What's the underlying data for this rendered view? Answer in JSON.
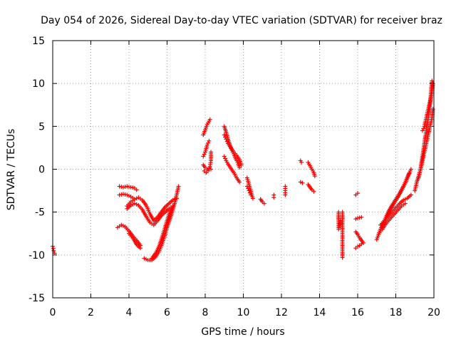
{
  "chart_data": {
    "type": "scatter",
    "title": "Day 054 of 2026, Sidereal Day-to-day VTEC variation (SDTVAR) for receiver braz",
    "xlabel": "GPS time / hours",
    "ylabel": "SDTVAR / TECUs",
    "xlim": [
      0,
      20
    ],
    "ylim": [
      -15,
      15
    ],
    "xticks": [
      0,
      2,
      4,
      6,
      8,
      10,
      12,
      14,
      16,
      18,
      20
    ],
    "yticks": [
      -15,
      -10,
      -5,
      0,
      5,
      10,
      15
    ],
    "grid": true,
    "marker": "+",
    "color": "#ff0000",
    "series": [
      {
        "name": "SDTVAR",
        "segments": [
          [
            [
              0.0,
              -9.0
            ],
            [
              0.05,
              -9.5
            ],
            [
              0.1,
              -9.8
            ]
          ],
          [
            [
              3.5,
              -2.0
            ],
            [
              3.7,
              -2.1
            ],
            [
              3.9,
              -2.0
            ],
            [
              4.1,
              -2.1
            ],
            [
              4.3,
              -2.2
            ],
            [
              4.4,
              -2.4
            ]
          ],
          [
            [
              3.5,
              -3.0
            ],
            [
              3.7,
              -2.9
            ],
            [
              3.9,
              -3.0
            ],
            [
              4.1,
              -3.2
            ],
            [
              4.3,
              -3.5
            ]
          ],
          [
            [
              3.9,
              -4.3
            ],
            [
              4.1,
              -3.8
            ],
            [
              4.3,
              -3.5
            ],
            [
              4.5,
              -3.3
            ],
            [
              4.7,
              -3.6
            ],
            [
              4.9,
              -4.2
            ],
            [
              5.1,
              -5.2
            ],
            [
              5.3,
              -6.0
            ],
            [
              5.5,
              -5.6
            ],
            [
              5.7,
              -5.0
            ],
            [
              5.9,
              -4.4
            ],
            [
              6.1,
              -4.0
            ],
            [
              6.3,
              -3.6
            ],
            [
              6.5,
              -3.4
            ]
          ],
          [
            [
              3.9,
              -4.6
            ],
            [
              4.1,
              -4.2
            ],
            [
              4.3,
              -4.0
            ],
            [
              4.5,
              -4.2
            ],
            [
              4.7,
              -4.7
            ],
            [
              4.9,
              -5.5
            ],
            [
              5.1,
              -6.2
            ],
            [
              5.3,
              -6.5
            ],
            [
              5.5,
              -6.0
            ],
            [
              5.7,
              -5.4
            ],
            [
              5.9,
              -5.0
            ],
            [
              6.1,
              -4.6
            ],
            [
              6.3,
              -4.3
            ]
          ],
          [
            [
              3.4,
              -6.8
            ],
            [
              3.6,
              -6.5
            ],
            [
              3.8,
              -6.7
            ],
            [
              4.0,
              -7.2
            ],
            [
              4.2,
              -7.8
            ],
            [
              4.4,
              -8.3
            ],
            [
              4.6,
              -8.9
            ]
          ],
          [
            [
              4.0,
              -7.5
            ],
            [
              4.2,
              -8.0
            ],
            [
              4.4,
              -8.8
            ],
            [
              4.6,
              -9.2
            ]
          ],
          [
            [
              4.8,
              -10.4
            ],
            [
              5.0,
              -10.6
            ],
            [
              5.2,
              -10.6
            ],
            [
              5.4,
              -10.2
            ],
            [
              5.6,
              -9.5
            ],
            [
              5.8,
              -8.3
            ],
            [
              6.0,
              -6.8
            ],
            [
              6.2,
              -5.4
            ],
            [
              6.4,
              -4.0
            ],
            [
              6.5,
              -3.0
            ],
            [
              6.6,
              -2.0
            ]
          ],
          [
            [
              5.2,
              -10.4
            ],
            [
              5.4,
              -9.8
            ],
            [
              5.6,
              -8.9
            ],
            [
              5.8,
              -7.5
            ],
            [
              6.0,
              -6.0
            ],
            [
              6.2,
              -4.6
            ]
          ],
          [
            [
              7.9,
              4.0
            ],
            [
              8.0,
              4.6
            ],
            [
              8.1,
              5.2
            ],
            [
              8.2,
              5.6
            ],
            [
              8.25,
              5.8
            ]
          ],
          [
            [
              7.9,
              1.5
            ],
            [
              8.0,
              2.0
            ],
            [
              8.1,
              2.8
            ],
            [
              8.2,
              3.3
            ]
          ],
          [
            [
              7.9,
              0.5
            ],
            [
              8.0,
              0.2
            ],
            [
              8.1,
              0.0
            ],
            [
              8.2,
              0.1
            ],
            [
              8.3,
              0.0
            ]
          ],
          [
            [
              7.95,
              -0.2
            ],
            [
              8.05,
              -0.4
            ],
            [
              8.15,
              -0.2
            ],
            [
              8.25,
              0.3
            ],
            [
              8.3,
              1.0
            ],
            [
              8.3,
              2.0
            ]
          ],
          [
            [
              9.0,
              5.0
            ],
            [
              9.1,
              4.3
            ],
            [
              9.2,
              3.5
            ],
            [
              9.3,
              2.8
            ],
            [
              9.4,
              2.2
            ],
            [
              9.5,
              1.8
            ],
            [
              9.6,
              1.2
            ],
            [
              9.7,
              0.8
            ],
            [
              9.8,
              0.2
            ]
          ],
          [
            [
              9.0,
              4.0
            ],
            [
              9.1,
              3.5
            ],
            [
              9.2,
              3.0
            ],
            [
              9.35,
              2.5
            ],
            [
              9.5,
              2.0
            ],
            [
              9.65,
              1.6
            ],
            [
              9.8,
              1.1
            ],
            [
              9.9,
              0.5
            ]
          ],
          [
            [
              9.0,
              1.5
            ],
            [
              9.1,
              1.0
            ],
            [
              9.2,
              0.6
            ],
            [
              9.35,
              0.1
            ],
            [
              9.5,
              -0.4
            ],
            [
              9.65,
              -1.0
            ],
            [
              9.8,
              -1.5
            ]
          ],
          [
            [
              10.2,
              -1.0
            ],
            [
              10.3,
              -1.8
            ],
            [
              10.4,
              -2.6
            ],
            [
              10.5,
              -3.4
            ]
          ],
          [
            [
              10.2,
              -2.0
            ],
            [
              10.3,
              -2.5
            ],
            [
              10.4,
              -3.0
            ]
          ],
          [
            [
              10.9,
              -3.5
            ],
            [
              11.0,
              -3.8
            ],
            [
              11.1,
              -4.0
            ]
          ],
          [
            [
              11.6,
              -3.0
            ],
            [
              11.6,
              -3.3
            ]
          ],
          [
            [
              12.2,
              -2.0
            ],
            [
              12.2,
              -2.5
            ],
            [
              12.2,
              -3.0
            ]
          ],
          [
            [
              13.0,
              -1.5
            ],
            [
              13.1,
              -1.6
            ]
          ],
          [
            [
              13.0,
              1.0
            ],
            [
              13.05,
              0.8
            ]
          ],
          [
            [
              13.4,
              0.8
            ],
            [
              13.5,
              0.4
            ],
            [
              13.6,
              0.0
            ],
            [
              13.7,
              -0.4
            ],
            [
              13.75,
              -0.8
            ]
          ],
          [
            [
              13.4,
              -1.8
            ],
            [
              13.5,
              -2.1
            ],
            [
              13.6,
              -2.4
            ],
            [
              13.7,
              -2.6
            ]
          ],
          [
            [
              15.0,
              -5.0
            ],
            [
              15.0,
              -6.3
            ],
            [
              15.0,
              -7.0
            ],
            [
              15.1,
              -6.0
            ]
          ],
          [
            [
              15.2,
              -5.0
            ],
            [
              15.2,
              -6.5
            ],
            [
              15.2,
              -8.5
            ],
            [
              15.2,
              -10.3
            ]
          ],
          [
            [
              15.9,
              -3.0
            ],
            [
              16.0,
              -2.8
            ]
          ],
          [
            [
              15.9,
              -5.8
            ],
            [
              16.0,
              -5.7
            ],
            [
              16.2,
              -5.6
            ]
          ],
          [
            [
              15.9,
              -7.3
            ],
            [
              16.0,
              -7.6
            ],
            [
              16.1,
              -8.0
            ],
            [
              16.2,
              -8.3
            ],
            [
              16.3,
              -8.6
            ]
          ],
          [
            [
              15.9,
              -9.2
            ],
            [
              16.0,
              -9.0
            ],
            [
              16.1,
              -8.9
            ],
            [
              16.2,
              -8.7
            ]
          ],
          [
            [
              17.0,
              -8.2
            ],
            [
              17.2,
              -7.0
            ],
            [
              17.4,
              -6.0
            ],
            [
              17.6,
              -5.0
            ],
            [
              17.8,
              -4.2
            ],
            [
              18.0,
              -3.5
            ],
            [
              18.2,
              -2.8
            ],
            [
              18.4,
              -2.0
            ],
            [
              18.6,
              -1.0
            ],
            [
              18.8,
              0.0
            ]
          ],
          [
            [
              17.1,
              -7.6
            ],
            [
              17.3,
              -6.6
            ],
            [
              17.5,
              -5.6
            ],
            [
              17.7,
              -4.8
            ],
            [
              17.9,
              -4.0
            ],
            [
              18.1,
              -3.3
            ],
            [
              18.3,
              -2.5
            ],
            [
              18.5,
              -1.6
            ],
            [
              18.7,
              -0.5
            ]
          ],
          [
            [
              17.2,
              -6.5
            ],
            [
              17.4,
              -6.0
            ],
            [
              17.6,
              -5.5
            ],
            [
              17.8,
              -5.0
            ],
            [
              18.0,
              -4.5
            ],
            [
              18.2,
              -4.0
            ],
            [
              18.4,
              -3.6
            ],
            [
              18.6,
              -3.4
            ],
            [
              18.8,
              -3.0
            ]
          ],
          [
            [
              17.3,
              -7.0
            ],
            [
              17.5,
              -6.3
            ],
            [
              17.7,
              -5.8
            ],
            [
              17.9,
              -5.3
            ],
            [
              18.1,
              -4.8
            ],
            [
              18.3,
              -4.3
            ],
            [
              18.5,
              -4.0
            ]
          ],
          [
            [
              19.0,
              -2.5
            ],
            [
              19.1,
              -1.5
            ],
            [
              19.2,
              -0.8
            ],
            [
              19.3,
              0.0
            ],
            [
              19.4,
              1.0
            ],
            [
              19.5,
              2.0
            ],
            [
              19.6,
              3.0
            ],
            [
              19.7,
              4.0
            ],
            [
              19.8,
              5.0
            ],
            [
              19.9,
              6.0
            ],
            [
              19.95,
              7.0
            ]
          ],
          [
            [
              19.2,
              -1.0
            ],
            [
              19.3,
              0.0
            ],
            [
              19.4,
              1.5
            ],
            [
              19.5,
              3.0
            ],
            [
              19.6,
              4.5
            ],
            [
              19.7,
              6.0
            ],
            [
              19.8,
              7.5
            ],
            [
              19.85,
              9.0
            ],
            [
              19.9,
              10.3
            ]
          ],
          [
            [
              19.4,
              4.5
            ],
            [
              19.5,
              5.0
            ],
            [
              19.6,
              6.0
            ],
            [
              19.7,
              7.0
            ],
            [
              19.8,
              8.0
            ],
            [
              19.9,
              9.0
            ],
            [
              19.95,
              10.0
            ]
          ]
        ]
      }
    ]
  }
}
